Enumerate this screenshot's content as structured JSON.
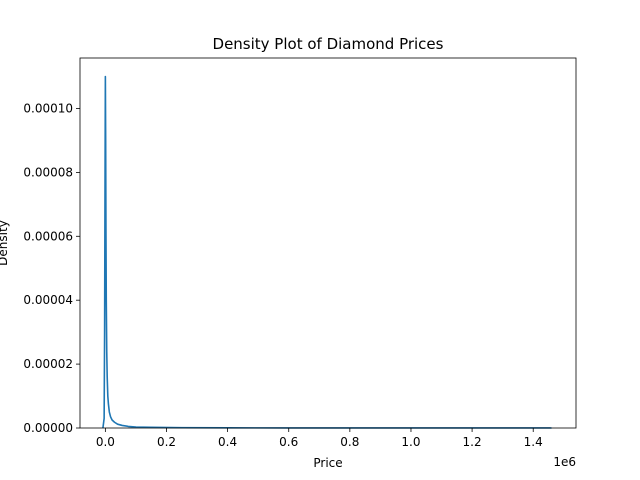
{
  "chart_data": {
    "type": "line",
    "title": "Density Plot of Diamond Prices",
    "xlabel": "Price",
    "ylabel": "Density",
    "x_offset_label": "1e6",
    "xlim": [
      -83000,
      1540000
    ],
    "ylim": [
      0,
      0.0001158
    ],
    "x_ticks": [
      0,
      200000,
      400000,
      600000,
      800000,
      1000000,
      1200000,
      1400000
    ],
    "x_tick_labels": [
      "0.0",
      "0.2",
      "0.4",
      "0.6",
      "0.8",
      "1.0",
      "1.2",
      "1.4"
    ],
    "y_ticks": [
      0,
      2e-05,
      4e-05,
      6e-05,
      8e-05,
      0.0001
    ],
    "y_tick_labels": [
      "0.00000",
      "0.00002",
      "0.00004",
      "0.00006",
      "0.00008",
      "0.00010"
    ],
    "grid": false,
    "series": [
      {
        "color": "#1f77b4",
        "x": [
          -8000,
          -4000,
          -2500,
          -1000,
          0,
          1000,
          2000,
          3000,
          4500,
          6000,
          8000,
          10000,
          13000,
          17000,
          22000,
          30000,
          40000,
          55000,
          75000,
          100000,
          150000,
          250000,
          400000,
          600000,
          800000,
          1000000,
          1200000,
          1400000,
          1455000,
          1460000
        ],
        "y": [
          0,
          3e-06,
          3e-05,
          8e-05,
          0.00011,
          9e-05,
          6e-05,
          4e-05,
          2.4e-05,
          1.6e-05,
          1e-05,
          7.5e-06,
          5e-06,
          3.5e-06,
          2.5e-06,
          1.8e-06,
          1.2e-06,
          8e-07,
          5e-07,
          3e-07,
          2e-07,
          1e-07,
          5e-08,
          3e-08,
          2e-08,
          1e-08,
          1e-08,
          5e-09,
          5e-09,
          0
        ]
      }
    ]
  }
}
